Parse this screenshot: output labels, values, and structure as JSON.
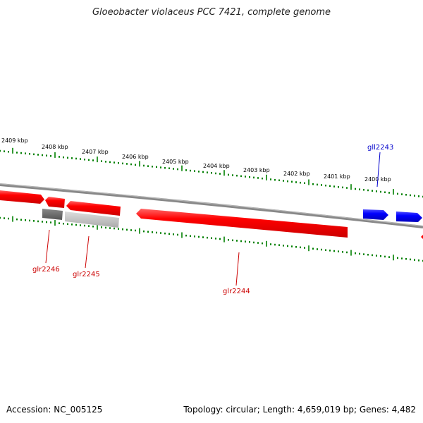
{
  "title": "Gloeobacter violaceus PCC 7421, complete genome",
  "footer": {
    "accession": "Accession: NC_005125",
    "topology": "Topology: circular; Length: 4,659,019 bp; Genes: 4,482"
  },
  "scale_labels": [
    "2409 kbp",
    "2408 kbp",
    "2407 kbp",
    "2406 kbp",
    "2405 kbp",
    "2404 kbp",
    "2403 kbp",
    "2402 kbp",
    "2401 kbp",
    "2400 kbp"
  ],
  "genes": [
    {
      "label": "glr2246",
      "color": "#cc0000"
    },
    {
      "label": "glr2245",
      "color": "#cc0000"
    },
    {
      "label": "glr2244",
      "color": "#cc0000"
    },
    {
      "label": "gll2243",
      "color": "#0000cc"
    }
  ],
  "colors": {
    "reverse_strand": "#ff0000",
    "forward_strand": "#0000ff",
    "tick": "#008000",
    "backbone": "#888888",
    "pseudo_dark": "#666666",
    "pseudo_light": "#bbbbbb"
  }
}
